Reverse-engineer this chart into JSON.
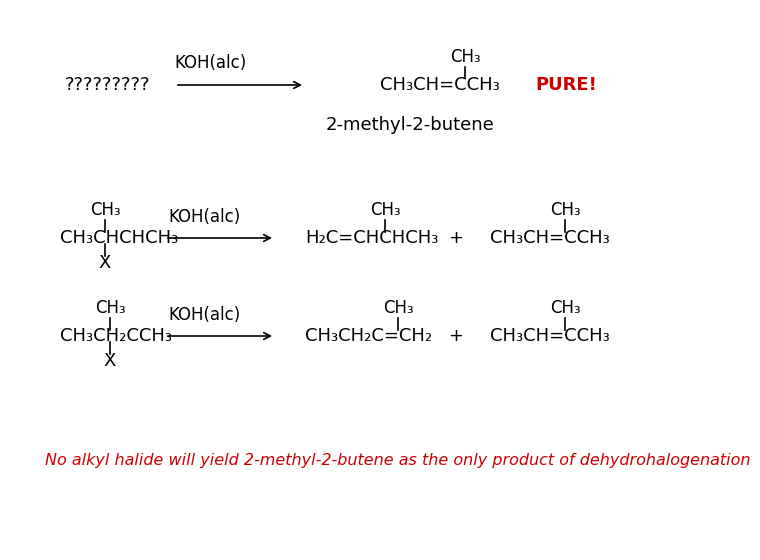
{
  "background": "#ffffff",
  "footer_text": "No alkyl halide will yield 2-methyl-2-butene as the only product of dehydrohalogenation",
  "footer_color": "#cc0000",
  "footer_fontsize": 11.5
}
